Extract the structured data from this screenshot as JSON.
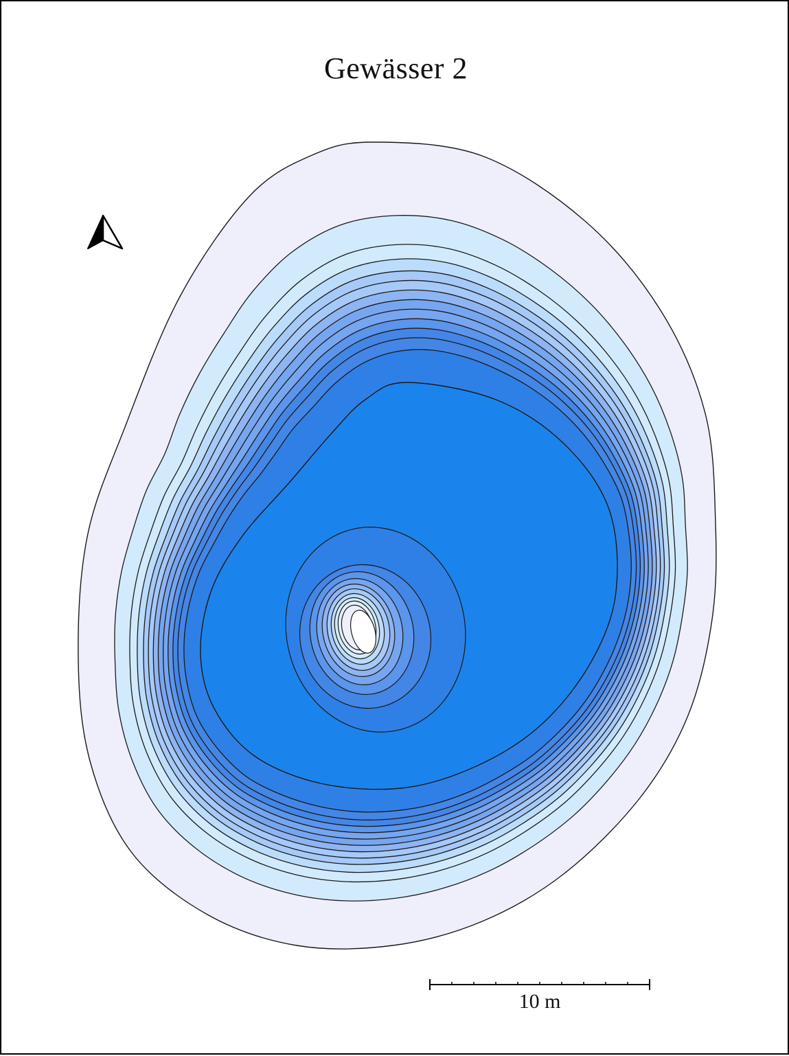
{
  "map": {
    "title": "Gewässer 2",
    "scale_label": "10 m",
    "north_arrow_icon": "north-arrow-icon",
    "depth_palette": [
      "#efeefb",
      "#d2ebfc",
      "#bcdcfb",
      "#a6c9f8",
      "#8fb4f2",
      "#76a6f0",
      "#5b95ec",
      "#4486e6",
      "#2f80e6",
      "#1b84ec"
    ],
    "contour_color": "#1a1a1a",
    "island_color": "#ffffff"
  }
}
